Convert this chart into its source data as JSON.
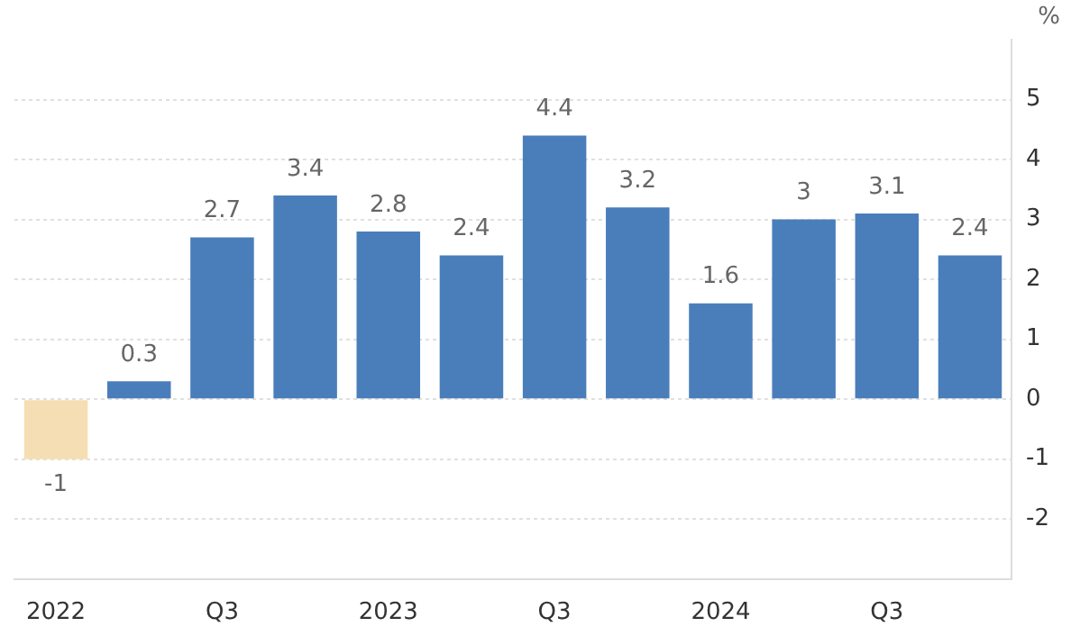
{
  "chart_data": {
    "type": "bar",
    "ylabel": "%",
    "categories": [
      "2022",
      null,
      "Q3",
      null,
      "2023",
      null,
      "Q3",
      null,
      "2024",
      null,
      "Q3",
      null
    ],
    "values": [
      -1,
      0.3,
      2.7,
      3.4,
      2.8,
      2.4,
      4.4,
      3.2,
      1.6,
      3,
      3.1,
      2.4
    ],
    "colors": [
      "#f5deb3",
      "#4a7ebb",
      "#4a7ebb",
      "#4a7ebb",
      "#4a7ebb",
      "#4a7ebb",
      "#4a7ebb",
      "#4a7ebb",
      "#4a7ebb",
      "#4a7ebb",
      "#4a7ebb",
      "#4a7ebb"
    ],
    "ylim": [
      -3,
      6
    ],
    "yticks": [
      -2,
      -1,
      0,
      1,
      2,
      3,
      4,
      5
    ],
    "grid": "y",
    "data_labels": true,
    "legend": false
  }
}
